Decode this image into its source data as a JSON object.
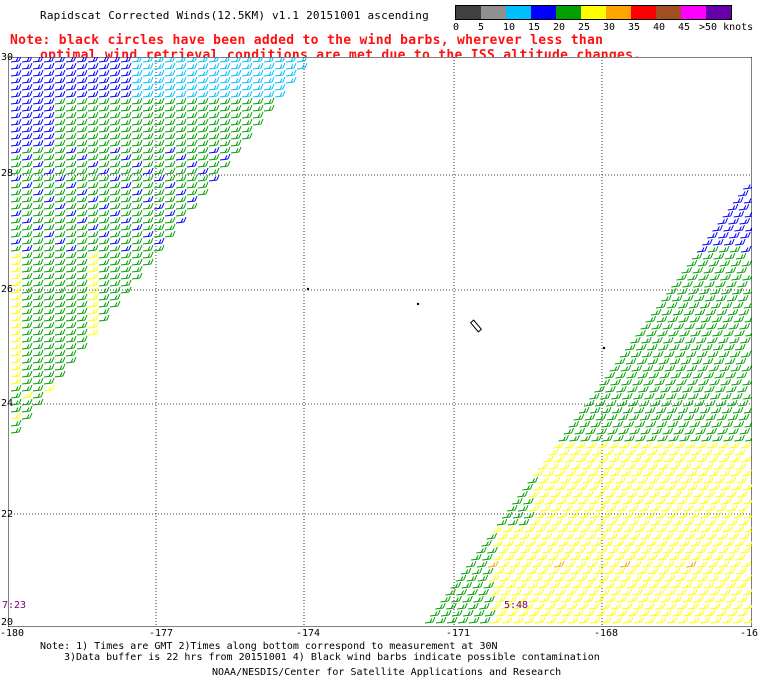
{
  "title": "Rapidscat Corrected Winds(12.5KM) v1.1 20151001 ascending",
  "note_line1": "Note: black circles have been added to the wind barbs, wherever less than",
  "note_line2": "optimal wind retrieval conditions are met due to the ISS altitude changes.",
  "legend": {
    "labels": [
      "0",
      "5",
      "10",
      "15",
      "20",
      "25",
      "30",
      "35",
      "40",
      "45",
      ">50 knots"
    ],
    "colors": [
      "#404040",
      "#909090",
      "#00bfff",
      "#0000ff",
      "#00a000",
      "#ffff00",
      "#ffa500",
      "#ff0000",
      "#a05020",
      "#ff00ff",
      "#6600aa"
    ]
  },
  "lat_labels": [
    "30",
    "28",
    "26",
    "24",
    "22",
    "20"
  ],
  "lon_labels": [
    "-180",
    "-177",
    "-174",
    "-171",
    "-168",
    "-16"
  ],
  "times": {
    "left": "7:23",
    "right": "5:48"
  },
  "footnote1": "Note: 1) Times are GMT 2)Times along bottom correspond to measurement at 30N",
  "footnote2": "3)Data buffer is 22 hrs from 20151001 4) Black wind barbs indicate possible contamination",
  "credit": "NOAA/NESDIS/Center for Satellite Applications and Research"
}
